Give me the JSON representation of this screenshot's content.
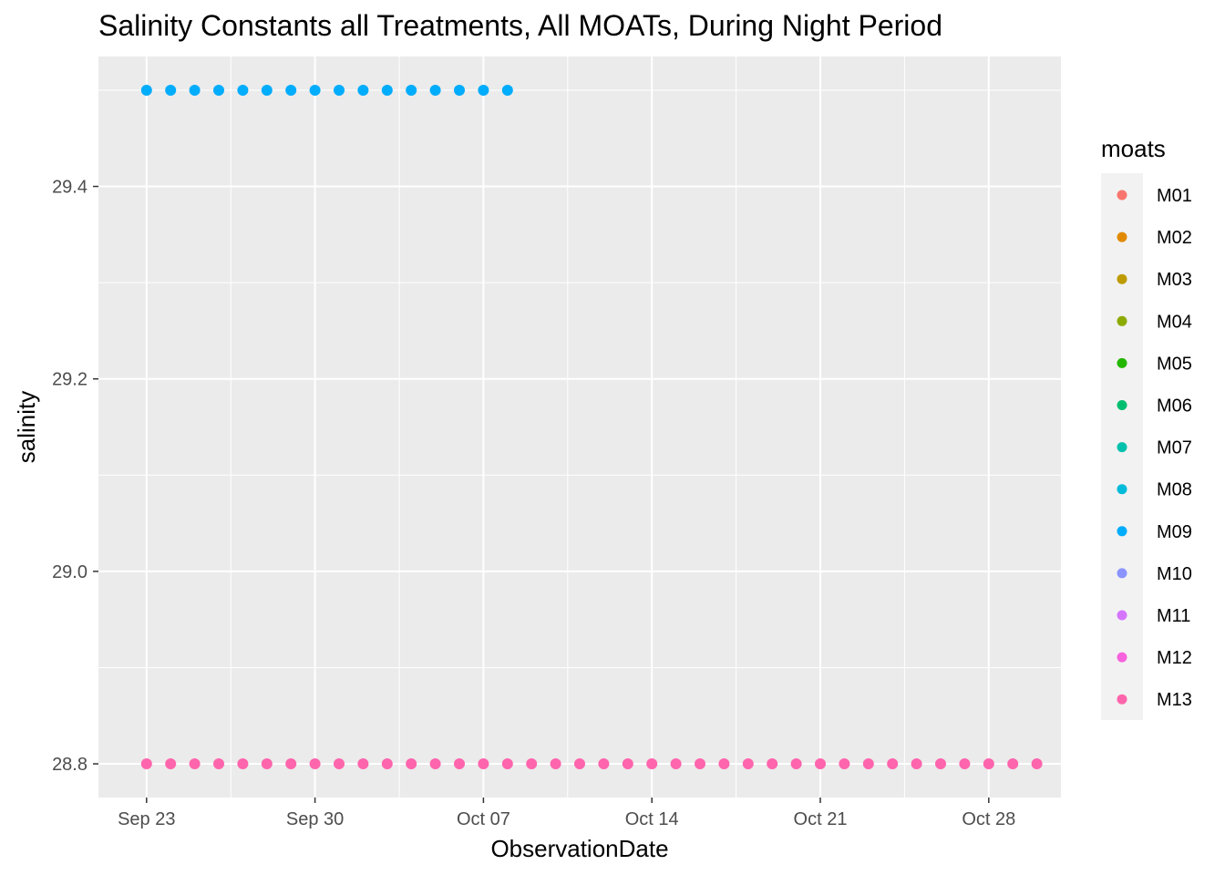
{
  "chart_data": {
    "type": "scatter",
    "title": "Salinity Constants all Treatments, All MOATs, During Night Period",
    "xlabel": "ObservationDate",
    "ylabel": "salinity",
    "x_ticks": [
      "Sep 23",
      "Sep 30",
      "Oct 07",
      "Oct 14",
      "Oct 21",
      "Oct 28"
    ],
    "x_tick_dates": [
      "2019-09-23",
      "2019-09-30",
      "2019-10-07",
      "2019-10-14",
      "2019-10-21",
      "2019-10-28"
    ],
    "xlim": [
      "2019-09-21",
      "2019-10-31"
    ],
    "y_ticks": [
      "28.8",
      "29.0",
      "29.2",
      "29.4"
    ],
    "ylim": [
      28.765,
      29.535
    ],
    "grid": true,
    "legend_title": "moats",
    "legend_position": "right",
    "series": [
      {
        "name": "M01",
        "color": "#F8766D",
        "x": [],
        "y": []
      },
      {
        "name": "M02",
        "color": "#E18A00",
        "x": [],
        "y": []
      },
      {
        "name": "M03",
        "color": "#BE9C00",
        "x": [],
        "y": []
      },
      {
        "name": "M04",
        "color": "#8CAB00",
        "x": [],
        "y": []
      },
      {
        "name": "M05",
        "color": "#24B700",
        "x": [],
        "y": []
      },
      {
        "name": "M06",
        "color": "#00BE70",
        "x": [],
        "y": []
      },
      {
        "name": "M07",
        "color": "#00C1AB",
        "x": [],
        "y": []
      },
      {
        "name": "M08",
        "color": "#00BBDA",
        "x": [],
        "y": []
      },
      {
        "name": "M09",
        "color": "#00ACFC",
        "x": [
          "2019-09-23",
          "2019-09-24",
          "2019-09-25",
          "2019-09-26",
          "2019-09-27",
          "2019-09-28",
          "2019-09-29",
          "2019-09-30",
          "2019-10-01",
          "2019-10-02",
          "2019-10-03",
          "2019-10-04",
          "2019-10-05",
          "2019-10-06",
          "2019-10-07",
          "2019-10-08"
        ],
        "y": [
          29.5,
          29.5,
          29.5,
          29.5,
          29.5,
          29.5,
          29.5,
          29.5,
          29.5,
          29.5,
          29.5,
          29.5,
          29.5,
          29.5,
          29.5,
          29.5
        ]
      },
      {
        "name": "M10",
        "color": "#8B93FF",
        "x": [],
        "y": []
      },
      {
        "name": "M11",
        "color": "#D575FE",
        "x": [],
        "y": []
      },
      {
        "name": "M12",
        "color": "#F962DD",
        "x": [],
        "y": []
      },
      {
        "name": "M13",
        "color": "#FF65AC",
        "x": [
          "2019-09-23",
          "2019-09-24",
          "2019-09-25",
          "2019-09-26",
          "2019-09-27",
          "2019-09-28",
          "2019-09-29",
          "2019-09-30",
          "2019-10-01",
          "2019-10-02",
          "2019-10-03",
          "2019-10-04",
          "2019-10-05",
          "2019-10-06",
          "2019-10-07",
          "2019-10-08",
          "2019-10-09",
          "2019-10-10",
          "2019-10-11",
          "2019-10-12",
          "2019-10-13",
          "2019-10-14",
          "2019-10-15",
          "2019-10-16",
          "2019-10-17",
          "2019-10-18",
          "2019-10-19",
          "2019-10-20",
          "2019-10-21",
          "2019-10-22",
          "2019-10-23",
          "2019-10-24",
          "2019-10-25",
          "2019-10-26",
          "2019-10-27",
          "2019-10-28",
          "2019-10-29",
          "2019-10-30"
        ],
        "y": [
          28.8,
          28.8,
          28.8,
          28.8,
          28.8,
          28.8,
          28.8,
          28.8,
          28.8,
          28.8,
          28.8,
          28.8,
          28.8,
          28.8,
          28.8,
          28.8,
          28.8,
          28.8,
          28.8,
          28.8,
          28.8,
          28.8,
          28.8,
          28.8,
          28.8,
          28.8,
          28.8,
          28.8,
          28.8,
          28.8,
          28.8,
          28.8,
          28.8,
          28.8,
          28.8,
          28.8,
          28.8,
          28.8
        ]
      }
    ]
  }
}
